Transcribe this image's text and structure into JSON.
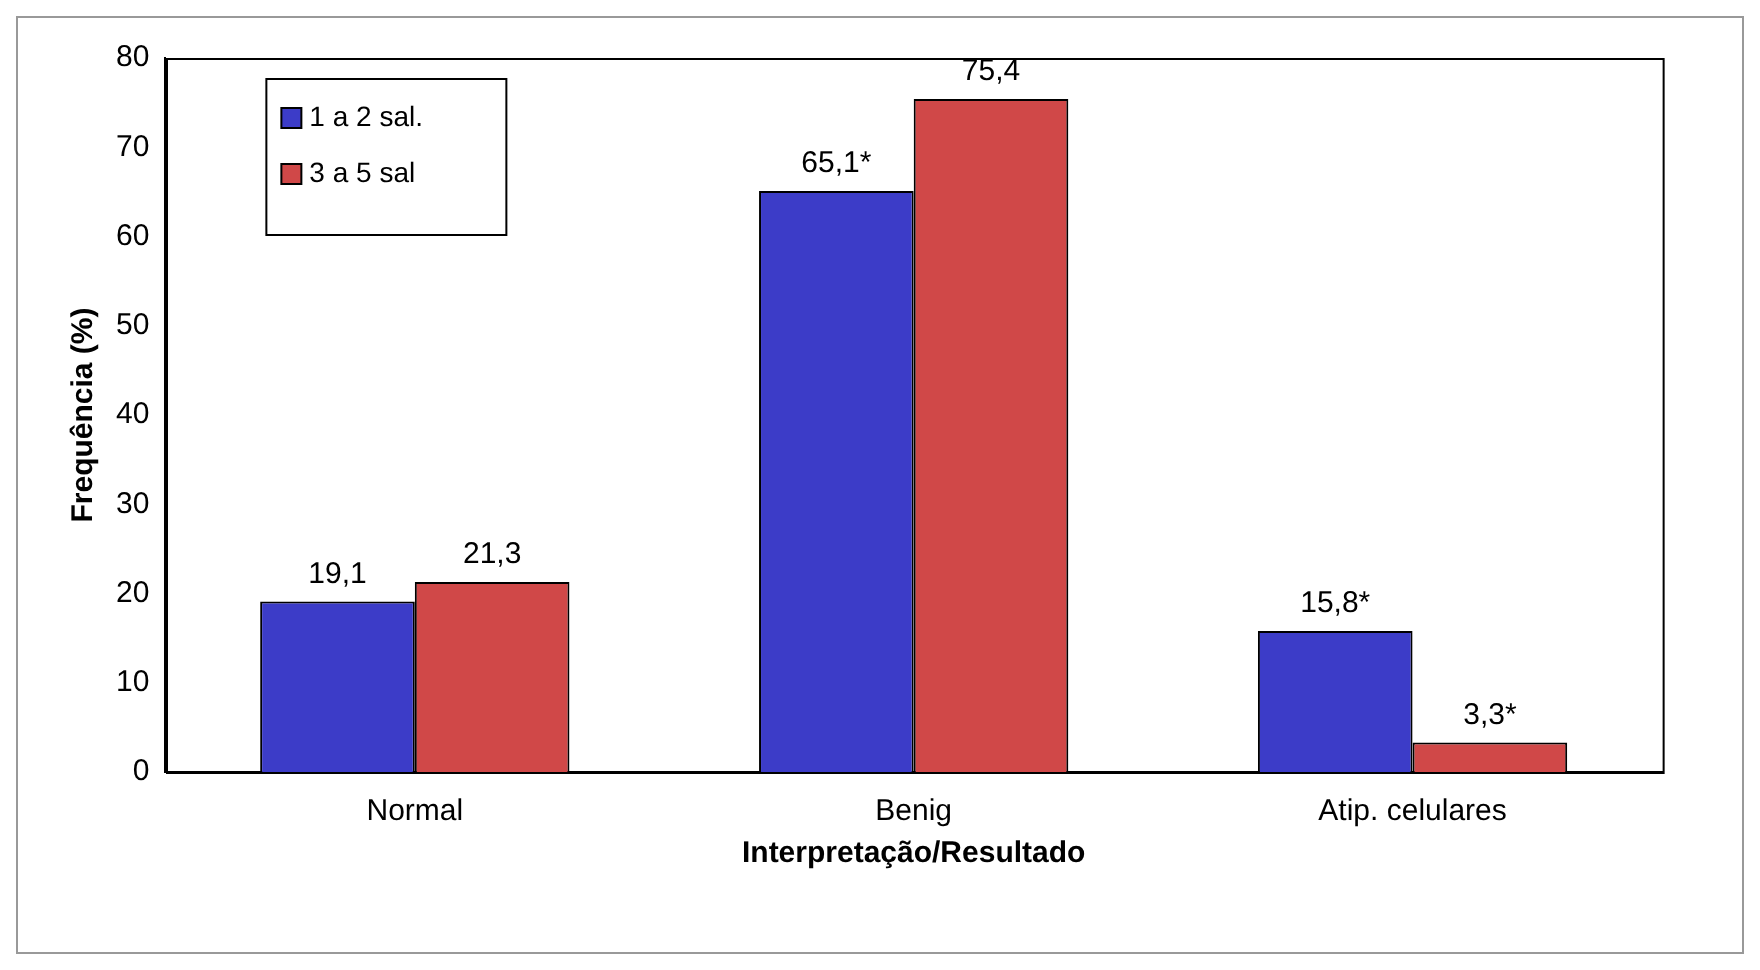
{
  "chart_data": {
    "type": "bar",
    "xlabel": "Interpretação/Resultado",
    "ylabel": "Frequência (%)",
    "categories": [
      "Normal",
      "Benig",
      "Atip. celulares"
    ],
    "series": [
      {
        "name": "1 a 2 sal.",
        "color": "#3c3cc8",
        "values": [
          19.1,
          65.1,
          15.8
        ],
        "value_labels": [
          "19,1",
          "65,1*",
          "15,8*"
        ]
      },
      {
        "name": "3 a 5 sal",
        "color": "#d04848",
        "values": [
          21.3,
          75.4,
          3.3
        ],
        "value_labels": [
          "21,3",
          "75,4",
          "3,3*"
        ]
      }
    ],
    "ylim": [
      0,
      80
    ],
    "yticks": [
      0,
      10,
      20,
      30,
      40,
      50,
      60,
      70,
      80
    ],
    "grid": false,
    "legend": "top left"
  }
}
